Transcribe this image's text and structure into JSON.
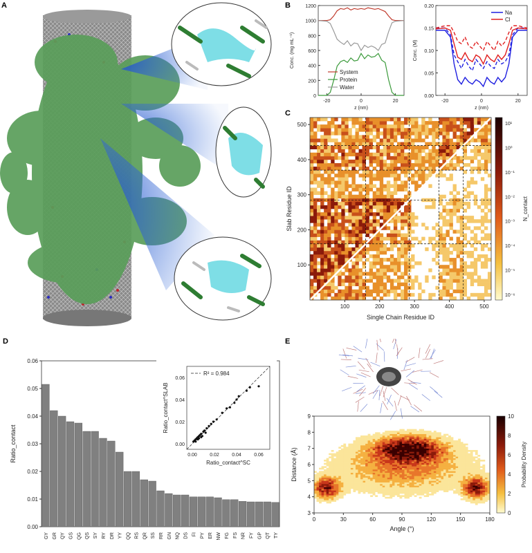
{
  "panels": {
    "a": "A",
    "b": "B",
    "c": "C",
    "d": "D",
    "e": "E"
  },
  "colors": {
    "protein": "#5a9e5a",
    "water": "#bbbbbb",
    "system": "#c0392b",
    "na": "#1f1fe0",
    "cl": "#e01f1f",
    "bar": "#808080"
  },
  "chart_data": [
    {
      "id": "B1",
      "type": "line",
      "xlabel": "z (nm)",
      "ylabel": "Conc. (mg mL⁻¹)",
      "xlim": [
        -25,
        25
      ],
      "ylim": [
        0,
        1200
      ],
      "xticks": [
        "-20",
        "0",
        "20"
      ],
      "yticks": [
        "0",
        "100",
        "200",
        "300",
        "400",
        "500",
        "600",
        "700",
        "800",
        "900",
        "1000",
        "1100",
        "1200"
      ],
      "legend": [
        "System",
        "Protein",
        "Water"
      ],
      "series": [
        {
          "name": "System",
          "x": [
            -25,
            -20,
            -18,
            -16,
            -14,
            -12,
            -10,
            -8,
            -6,
            -4,
            -2,
            0,
            2,
            4,
            6,
            8,
            10,
            12,
            14,
            16,
            18,
            20,
            25
          ],
          "values": [
            1000,
            1000,
            1010,
            1060,
            1130,
            1160,
            1150,
            1170,
            1140,
            1160,
            1150,
            1160,
            1150,
            1170,
            1160,
            1150,
            1160,
            1140,
            1120,
            1060,
            1010,
            1000,
            1000
          ]
        },
        {
          "name": "Protein",
          "x": [
            -25,
            -20,
            -18,
            -16,
            -14,
            -12,
            -10,
            -8,
            -6,
            -4,
            -2,
            0,
            2,
            4,
            6,
            8,
            10,
            12,
            14,
            16,
            18,
            20,
            25
          ],
          "values": [
            0,
            0,
            40,
            200,
            390,
            450,
            470,
            440,
            500,
            460,
            470,
            560,
            490,
            540,
            510,
            520,
            560,
            470,
            440,
            210,
            40,
            0,
            0
          ]
        },
        {
          "name": "Water",
          "x": [
            -25,
            -20,
            -18,
            -16,
            -14,
            -12,
            -10,
            -8,
            -6,
            -4,
            -2,
            0,
            2,
            4,
            6,
            8,
            10,
            12,
            14,
            16,
            18,
            20,
            25
          ],
          "values": [
            1000,
            990,
            960,
            860,
            750,
            710,
            680,
            730,
            660,
            700,
            690,
            600,
            670,
            640,
            660,
            640,
            600,
            680,
            700,
            850,
            970,
            990,
            1000
          ]
        }
      ]
    },
    {
      "id": "B2",
      "type": "line",
      "xlabel": "z (nm)",
      "ylabel": "Conc. (M)",
      "xlim": [
        -25,
        25
      ],
      "ylim": [
        0,
        0.2
      ],
      "xticks": [
        "-20",
        "0",
        "20"
      ],
      "yticks": [
        "0.00",
        "0.05",
        "0.10",
        "0.15",
        "0.20"
      ],
      "legend": [
        "Na",
        "Cl"
      ],
      "series": [
        {
          "name": "Na",
          "x": [
            -25,
            -20,
            -17,
            -15,
            -13,
            -11,
            -9,
            -7,
            -5,
            -3,
            -1,
            1,
            3,
            5,
            7,
            9,
            11,
            13,
            15,
            17,
            20,
            25
          ],
          "values": [
            0.145,
            0.145,
            0.13,
            0.07,
            0.035,
            0.025,
            0.04,
            0.03,
            0.025,
            0.035,
            0.03,
            0.02,
            0.04,
            0.03,
            0.025,
            0.04,
            0.03,
            0.04,
            0.07,
            0.13,
            0.145,
            0.145
          ]
        },
        {
          "name": "Na-dashed",
          "x": [
            -25,
            -20,
            -17,
            -15,
            -13,
            -11,
            -9,
            -7,
            -5,
            -3,
            -1,
            1,
            3,
            5,
            7,
            9,
            11,
            13,
            15,
            17,
            20,
            25
          ],
          "values": [
            0.15,
            0.15,
            0.135,
            0.09,
            0.075,
            0.06,
            0.08,
            0.065,
            0.055,
            0.08,
            0.07,
            0.06,
            0.075,
            0.065,
            0.06,
            0.08,
            0.07,
            0.075,
            0.09,
            0.135,
            0.15,
            0.15
          ]
        },
        {
          "name": "Cl",
          "x": [
            -25,
            -20,
            -17,
            -15,
            -13,
            -11,
            -9,
            -7,
            -5,
            -3,
            -1,
            1,
            3,
            5,
            7,
            9,
            11,
            13,
            15,
            17,
            20,
            25
          ],
          "values": [
            0.148,
            0.15,
            0.145,
            0.115,
            0.085,
            0.08,
            0.095,
            0.08,
            0.075,
            0.09,
            0.085,
            0.07,
            0.09,
            0.08,
            0.075,
            0.09,
            0.08,
            0.09,
            0.115,
            0.145,
            0.15,
            0.148
          ]
        },
        {
          "name": "Cl-dashed",
          "x": [
            -25,
            -20,
            -17,
            -15,
            -13,
            -11,
            -9,
            -7,
            -5,
            -3,
            -1,
            1,
            3,
            5,
            7,
            9,
            11,
            13,
            15,
            17,
            20,
            25
          ],
          "values": [
            0.15,
            0.155,
            0.155,
            0.14,
            0.12,
            0.115,
            0.13,
            0.11,
            0.105,
            0.12,
            0.11,
            0.1,
            0.12,
            0.11,
            0.1,
            0.12,
            0.11,
            0.12,
            0.14,
            0.155,
            0.155,
            0.15
          ]
        }
      ]
    },
    {
      "id": "C",
      "type": "heatmap",
      "xlabel": "Single Chain Residue ID",
      "ylabel": "Slab Residue ID",
      "xlim": [
        0,
        520
      ],
      "ylim": [
        0,
        520
      ],
      "xticks": [
        "100",
        "200",
        "300",
        "400",
        "500"
      ],
      "yticks": [
        "100",
        "200",
        "300",
        "400",
        "500"
      ],
      "colorbar_label": "N_contact",
      "colorbar_ticks": [
        "10¹",
        "10⁰",
        "10⁻¹",
        "10⁻²",
        "10⁻³",
        "10⁻⁴",
        "10⁻⁵",
        "10⁻⁶"
      ],
      "boundaries": [
        160,
        285,
        370,
        440
      ]
    },
    {
      "id": "D",
      "type": "bar",
      "ylabel": "Ratio_contact",
      "ylim": [
        0,
        0.06
      ],
      "yticks": [
        "0.00",
        "0.01",
        "0.02",
        "0.03",
        "0.04",
        "0.05",
        "0.06"
      ],
      "categories": [
        "GY",
        "GR",
        "QY",
        "GS",
        "QG",
        "QS",
        "SY",
        "RY",
        "DR",
        "YY",
        "QQ",
        "RS",
        "QR",
        "SS",
        "RR",
        "GN",
        "NQ",
        "DS",
        "FI",
        "PY",
        "ER",
        "NW",
        "FG",
        "FS",
        "NR",
        "FY",
        "GP",
        "QT",
        "TY"
      ],
      "values": [
        0.0515,
        0.042,
        0.04,
        0.038,
        0.0375,
        0.0345,
        0.0345,
        0.032,
        0.031,
        0.027,
        0.02,
        0.02,
        0.017,
        0.0165,
        0.013,
        0.012,
        0.0115,
        0.0115,
        0.0108,
        0.0108,
        0.0108,
        0.0105,
        0.0098,
        0.0098,
        0.0092,
        0.009,
        0.009,
        0.009,
        0.0088
      ]
    },
    {
      "id": "D-inset",
      "type": "scatter",
      "xlabel": "Ratio_contact^SC",
      "ylabel": "Ratio_contact^SLAB",
      "xlim": [
        -0.005,
        0.07
      ],
      "ylim": [
        -0.005,
        0.07
      ],
      "xticks": [
        "0.00",
        "0.02",
        "0.04",
        "0.06"
      ],
      "yticks": [
        "0.00",
        "0.02",
        "0.04",
        "0.06"
      ],
      "annotation": "R² = 0.984",
      "x": [
        0.001,
        0.002,
        0.003,
        0.004,
        0.005,
        0.006,
        0.007,
        0.008,
        0.009,
        0.01,
        0.011,
        0.012,
        0.013,
        0.015,
        0.017,
        0.019,
        0.022,
        0.027,
        0.031,
        0.034,
        0.038,
        0.04,
        0.042,
        0.049,
        0.052,
        0.06,
        0.005,
        0.006,
        0.008,
        0.003
      ],
      "y": [
        0.002,
        0.003,
        0.002,
        0.005,
        0.006,
        0.005,
        0.008,
        0.009,
        0.007,
        0.011,
        0.012,
        0.01,
        0.014,
        0.016,
        0.018,
        0.02,
        0.022,
        0.028,
        0.032,
        0.033,
        0.037,
        0.04,
        0.043,
        0.048,
        0.051,
        0.052,
        0.004,
        0.007,
        0.006,
        0.004
      ]
    },
    {
      "id": "E",
      "type": "heatmap",
      "xlabel": "Angle (°)",
      "ylabel": "Distance (Å)",
      "xlim": [
        0,
        180
      ],
      "ylim": [
        3,
        9
      ],
      "xticks": [
        "0",
        "30",
        "60",
        "90",
        "120",
        "150",
        "180"
      ],
      "yticks": [
        "3",
        "4",
        "5",
        "6",
        "7",
        "8",
        "9"
      ],
      "colorbar_label": "Probability Density",
      "colorbar_ticks": [
        "0",
        "2",
        "4",
        "6",
        "8",
        "10"
      ]
    }
  ]
}
